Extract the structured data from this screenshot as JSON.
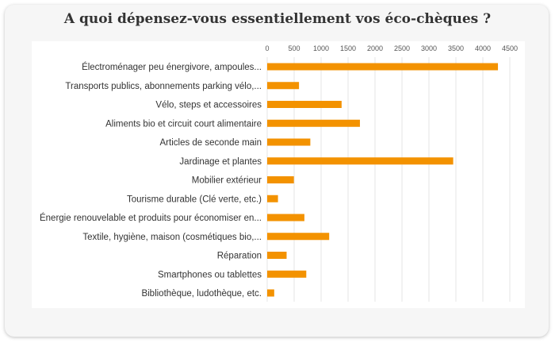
{
  "chart_data": {
    "type": "bar",
    "orientation": "horizontal",
    "title": "A quoi dépensez-vous essentiellement vos éco-chèques ?",
    "categories": [
      "Électroménager peu énergivore, ampoules...",
      "Transports publics, abonnements parking vélo,...",
      "Vélo, steps et accessoires",
      "Aliments bio et circuit court alimentaire",
      "Articles de seconde main",
      "Jardinage et plantes",
      "Mobilier extérieur",
      "Tourisme durable (Clé verte, etc.)",
      "Énergie renouvelable et produits pour économiser en...",
      "Textile, hygiène, maison (cosmétiques bio,...",
      "Réparation",
      "Smartphones ou tablettes",
      "Bibliothèque, ludothèque, etc."
    ],
    "values": [
      4280,
      590,
      1380,
      1720,
      800,
      3450,
      495,
      200,
      690,
      1150,
      360,
      725,
      130
    ],
    "xlim": [
      0,
      4500
    ],
    "xticks": [
      0,
      500,
      1000,
      1500,
      2000,
      2500,
      3000,
      3500,
      4000,
      4500
    ],
    "xaxis_position": "top",
    "grid": true,
    "bar_color": "#f39200"
  }
}
